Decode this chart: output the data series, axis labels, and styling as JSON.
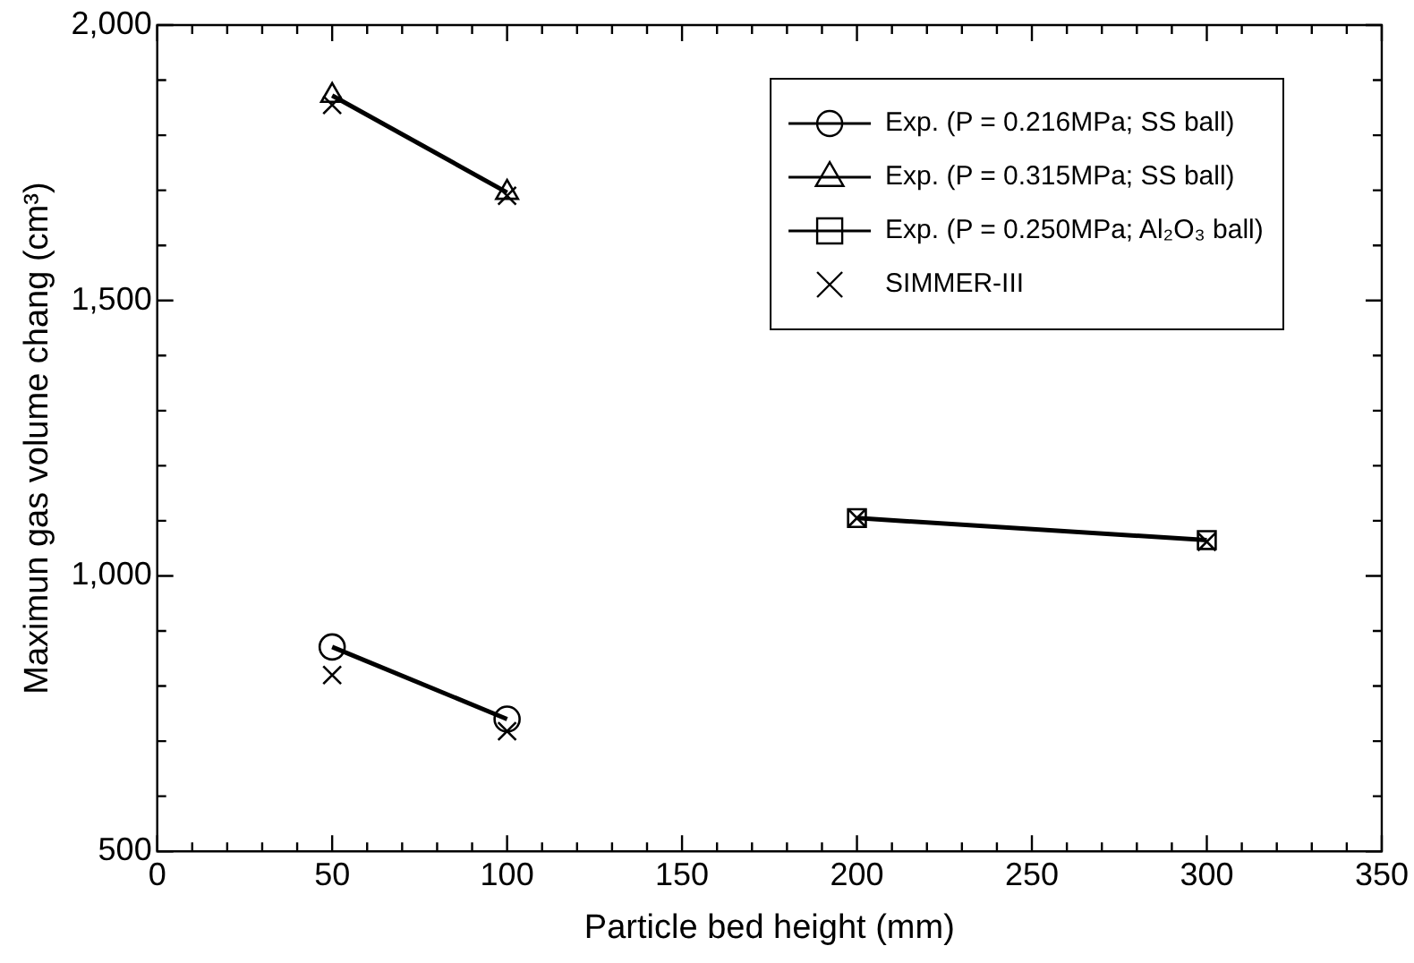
{
  "chart_data": {
    "type": "line",
    "xlabel": "Particle bed height (mm)",
    "ylabel": "Maximun gas volume chang (cm³)",
    "xlim": [
      0,
      350
    ],
    "xticks": [
      0,
      {
        "value": 10,
        "label": null
      },
      {
        "value": 20,
        "label": null
      },
      {
        "value": 30,
        "label": null
      },
      {
        "value": 40,
        "label": null
      },
      50,
      {
        "value": 60,
        "label": null
      },
      {
        "value": 70,
        "label": null
      },
      {
        "value": 80,
        "label": null
      },
      {
        "value": 90,
        "label": null
      },
      100,
      {
        "value": 110,
        "label": null
      },
      {
        "value": 120,
        "label": null
      },
      {
        "value": 130,
        "label": null
      },
      {
        "value": 140,
        "label": null
      },
      150,
      {
        "value": 160,
        "label": null
      },
      {
        "value": 170,
        "label": null
      },
      {
        "value": 180,
        "label": null
      },
      {
        "value": 190,
        "label": null
      },
      200,
      {
        "value": 210,
        "label": null
      },
      {
        "value": 220,
        "label": null
      },
      {
        "value": 230,
        "label": null
      },
      {
        "value": 240,
        "label": null
      },
      250,
      {
        "value": 260,
        "label": null
      },
      {
        "value": 270,
        "label": null
      },
      {
        "value": 280,
        "label": null
      },
      {
        "value": 290,
        "label": null
      },
      300,
      {
        "value": 310,
        "label": null
      },
      {
        "value": 320,
        "label": null
      },
      {
        "value": 330,
        "label": null
      },
      {
        "value": 340,
        "label": null
      },
      350
    ],
    "ylim": [
      500,
      2000
    ],
    "yticks": [
      500,
      {
        "value": 600,
        "label": null
      },
      {
        "value": 700,
        "label": null
      },
      {
        "value": 800,
        "label": null
      },
      {
        "value": 900,
        "label": null
      },
      {
        "value": 1000,
        "label": "1,000"
      },
      {
        "value": 1100,
        "label": null
      },
      {
        "value": 1200,
        "label": null
      },
      {
        "value": 1300,
        "label": null
      },
      {
        "value": 1400,
        "label": null
      },
      {
        "value": 1500,
        "label": "1,500"
      },
      {
        "value": 1600,
        "label": null
      },
      {
        "value": 1700,
        "label": null
      },
      {
        "value": 1800,
        "label": null
      },
      {
        "value": 1900,
        "label": null
      },
      {
        "value": 2000,
        "label": "2,000"
      }
    ],
    "grid": false,
    "legend": "top right",
    "series": [
      {
        "name": "Exp. (P = 0.216MPa; SS ball)",
        "marker": "circle",
        "color": "#000000",
        "x": [
          50,
          100
        ],
        "values": [
          871,
          740
        ]
      },
      {
        "name": "Exp. (P = 0.315MPa; SS ball)",
        "marker": "triangle",
        "color": "#000000",
        "x": [
          50,
          100
        ],
        "values": [
          1872,
          1696
        ]
      },
      {
        "name": "Exp. (P = 0.250MPa; Al₂O₃ ball)",
        "marker": "square",
        "color": "#000000",
        "x": [
          200,
          300
        ],
        "values": [
          1105,
          1065
        ]
      },
      {
        "name": "SIMMER-III",
        "type": "scatter",
        "marker": "cross",
        "color": "#000000",
        "x": [
          50,
          50,
          100,
          100,
          200,
          300
        ],
        "values": [
          1855,
          820,
          1690,
          718,
          1105,
          1062
        ]
      }
    ]
  }
}
